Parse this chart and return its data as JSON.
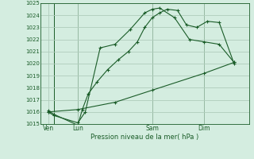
{
  "xlabel": "Pression niveau de la mer( hPa )",
  "ylim": [
    1015,
    1025
  ],
  "yticks": [
    1015,
    1016,
    1017,
    1018,
    1019,
    1020,
    1021,
    1022,
    1023,
    1024,
    1025
  ],
  "xtick_labels": [
    "Ven",
    "Lun",
    "Sam",
    "Dim"
  ],
  "xtick_positions": [
    0.5,
    2.5,
    7.5,
    11.0
  ],
  "xlim": [
    0,
    14
  ],
  "bg_color": "#d4ede0",
  "grid_color": "#b0ccbc",
  "line_color": "#1a5c28",
  "series1_x": [
    0.5,
    0.9,
    2.5,
    2.8,
    3.2,
    3.8,
    4.5,
    5.2,
    5.9,
    6.5,
    7.0,
    7.5,
    8.0,
    8.5,
    9.2,
    9.8,
    10.5,
    11.2,
    12.0,
    13.0
  ],
  "series1_y": [
    1016.1,
    1015.8,
    1014.9,
    1016.2,
    1017.5,
    1018.5,
    1019.5,
    1020.3,
    1021.0,
    1021.8,
    1023.0,
    1023.8,
    1024.2,
    1024.5,
    1024.4,
    1023.2,
    1023.0,
    1023.5,
    1023.4,
    1020.0
  ],
  "series2_x": [
    0.5,
    0.9,
    2.5,
    3.0,
    4.0,
    5.0,
    6.0,
    7.0,
    7.5,
    8.0,
    9.0,
    10.0,
    11.0,
    12.0,
    13.0
  ],
  "series2_y": [
    1016.0,
    1015.7,
    1015.1,
    1016.0,
    1021.3,
    1021.6,
    1022.8,
    1024.2,
    1024.5,
    1024.6,
    1023.8,
    1022.0,
    1021.8,
    1021.6,
    1020.1
  ],
  "series3_x": [
    0.5,
    2.5,
    5.0,
    7.5,
    11.0,
    13.0
  ],
  "series3_y": [
    1016.0,
    1016.2,
    1016.8,
    1017.8,
    1019.2,
    1020.1
  ],
  "vline_positions": [
    0.9,
    2.5,
    7.5,
    11.0
  ]
}
